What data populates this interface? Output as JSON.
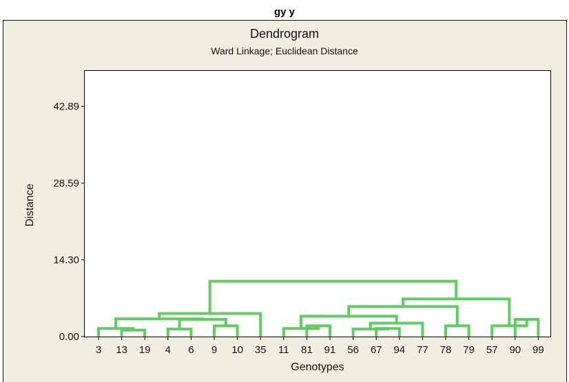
{
  "page_header": "gy y",
  "chart_data": {
    "type": "dendrogram",
    "title": "Dendrogram",
    "subtitle": "Ward Linkage; Euclidean Distance",
    "xlabel": "Genotypes",
    "ylabel": "Distance",
    "ylim": [
      0,
      49.5
    ],
    "yticks": [
      "0.00",
      "14.30",
      "28.59",
      "42.89"
    ],
    "ytick_values": [
      0,
      14.3,
      28.59,
      42.89
    ],
    "leaves": [
      "3",
      "13",
      "19",
      "4",
      "6",
      "9",
      "10",
      "35",
      "11",
      "81",
      "91",
      "56",
      "67",
      "94",
      "77",
      "78",
      "79",
      "57",
      "90",
      "99"
    ],
    "merges": [
      {
        "a": "L:1",
        "b": "L:2",
        "height": 1.2
      },
      {
        "a": "L:0",
        "b": "M:0",
        "height": 1.5
      },
      {
        "a": "L:3",
        "b": "L:4",
        "height": 1.4
      },
      {
        "a": "L:5",
        "b": "L:6",
        "height": 2.0
      },
      {
        "a": "M:2",
        "b": "M:3",
        "height": 3.2
      },
      {
        "a": "M:1",
        "b": "M:4",
        "height": 3.3
      },
      {
        "a": "M:5",
        "b": "L:7",
        "height": 4.3
      },
      {
        "a": "L:9",
        "b": "L:10",
        "height": 2.0
      },
      {
        "a": "L:8",
        "b": "M:7",
        "height": 1.5
      },
      {
        "a": "L:12",
        "b": "L:13",
        "height": 1.5
      },
      {
        "a": "L:11",
        "b": "M:9",
        "height": 1.4
      },
      {
        "a": "M:10",
        "b": "L:14",
        "height": 2.5
      },
      {
        "a": "M:8",
        "b": "M:11",
        "height": 3.8
      },
      {
        "a": "L:15",
        "b": "L:16",
        "height": 2.0
      },
      {
        "a": "M:12",
        "b": "M:13",
        "height": 5.6
      },
      {
        "a": "L:18",
        "b": "L:19",
        "height": 3.2
      },
      {
        "a": "L:17",
        "b": "M:15",
        "height": 2.0
      },
      {
        "a": "M:14",
        "b": "M:16",
        "height": 7.0
      },
      {
        "a": "M:6",
        "b": "M:17",
        "height": 10.3
      }
    ],
    "grid": false,
    "legend": "none",
    "colors": {
      "frame_background": "#f2ede1",
      "plot_background": "#ffffff",
      "link": "#5fcd5f",
      "text": "#111111"
    }
  }
}
